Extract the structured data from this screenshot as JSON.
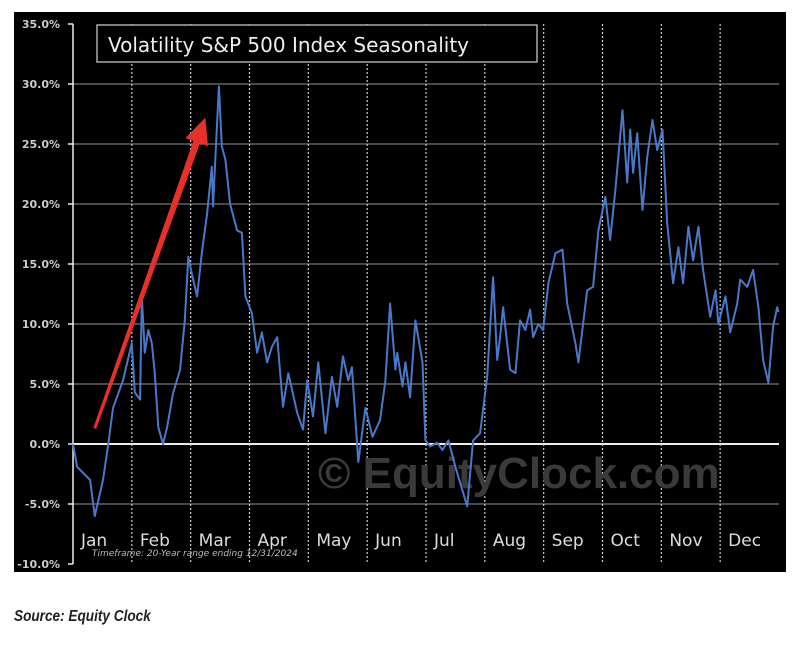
{
  "chart_data": {
    "type": "line",
    "title": "Volatility S&P 500 Index Seasonality",
    "xlabel": "",
    "ylabel": "",
    "x_unit": "months elapsed since Jan 1",
    "xlim": [
      0,
      12
    ],
    "ylim": [
      -10,
      35
    ],
    "yticks": [
      35,
      30,
      25,
      20,
      15,
      10,
      5,
      0,
      -5,
      -10
    ],
    "ytick_labels": [
      "35.0%",
      "30.0%",
      "25.0%",
      "20.0%",
      "15.0%",
      "10.0%",
      "5.0%",
      "0.0%",
      "-5.0%",
      "-10.0%"
    ],
    "categories": [
      "Jan",
      "Feb",
      "Mar",
      "Apr",
      "May",
      "Jun",
      "Jul",
      "Aug",
      "Sep",
      "Oct",
      "Nov",
      "Dec"
    ],
    "grid": true,
    "line_color": "#4a78c8",
    "series": [
      {
        "name": "Volatility S&P 500 Index Seasonality",
        "x": [
          0,
          0.07,
          0.29,
          0.37,
          0.51,
          0.6,
          0.68,
          0.85,
          1.0,
          1.05,
          1.14,
          1.17,
          1.22,
          1.28,
          1.34,
          1.39,
          1.45,
          1.53,
          1.6,
          1.7,
          1.82,
          1.9,
          1.96,
          2.02,
          2.11,
          2.19,
          2.28,
          2.36,
          2.38,
          2.48,
          2.53,
          2.59,
          2.67,
          2.79,
          2.87,
          2.93,
          3.04,
          3.13,
          3.21,
          3.3,
          3.38,
          3.47,
          3.57,
          3.66,
          3.81,
          3.91,
          3.98,
          4.08,
          4.17,
          4.29,
          4.4,
          4.49,
          4.59,
          4.68,
          4.74,
          4.85,
          4.97,
          5.09,
          5.22,
          5.31,
          5.39,
          5.48,
          5.51,
          5.6,
          5.65,
          5.73,
          5.82,
          5.94,
          5.99,
          6.07,
          6.19,
          6.28,
          6.38,
          6.5,
          6.7,
          6.8,
          6.92,
          7.04,
          7.14,
          7.21,
          7.26,
          7.31,
          7.43,
          7.52,
          7.6,
          7.69,
          7.77,
          7.82,
          7.91,
          7.99,
          8.08,
          8.2,
          8.32,
          8.4,
          8.54,
          8.59,
          8.74,
          8.84,
          8.93,
          9.05,
          9.13,
          9.22,
          9.34,
          9.42,
          9.47,
          9.52,
          9.59,
          9.68,
          9.76,
          9.85,
          9.93,
          10.02,
          10.1,
          10.2,
          10.29,
          10.37,
          10.46,
          10.54,
          10.63,
          10.71,
          10.83,
          10.92,
          10.97,
          11.09,
          11.17,
          11.29,
          11.34,
          11.46,
          11.56,
          11.65,
          11.73,
          11.82,
          11.9,
          11.97,
          11.99
        ],
        "y": [
          0,
          -1.9,
          -3,
          -6,
          -3,
          0,
          3,
          5.3,
          8.4,
          4.3,
          3.7,
          12.3,
          7.6,
          9.5,
          8.4,
          5.9,
          1.4,
          0,
          1.4,
          4.2,
          6.2,
          10.3,
          15.6,
          14.2,
          12.3,
          15.9,
          19.2,
          23.1,
          19.8,
          29.8,
          24.8,
          23.7,
          20,
          17.8,
          17.6,
          12.3,
          10.9,
          7.6,
          9.3,
          6.8,
          8.1,
          8.9,
          3.1,
          5.9,
          2.6,
          1.2,
          5.3,
          2.3,
          6.8,
          0.9,
          5.6,
          3.1,
          7.3,
          5.3,
          6.4,
          -1.5,
          3,
          0.6,
          2,
          5.3,
          11.7,
          6.2,
          7.6,
          4.8,
          6.8,
          3.9,
          10.3,
          6.8,
          0.3,
          -0.2,
          0.1,
          -0.5,
          0.3,
          -1.9,
          -5.2,
          0.3,
          0.9,
          5.6,
          13.9,
          7,
          8.9,
          11.4,
          6.2,
          5.9,
          10.3,
          9.5,
          11.2,
          8.9,
          10,
          9.5,
          13.4,
          15.9,
          16.2,
          11.7,
          8.4,
          6.8,
          12.8,
          13.1,
          17.8,
          20.6,
          17,
          21.2,
          27.8,
          21.8,
          26.2,
          22.6,
          25.9,
          19.5,
          23.9,
          27,
          24.5,
          26.2,
          18.4,
          13.4,
          16.4,
          13.4,
          18.1,
          15.3,
          18.1,
          14.5,
          10.6,
          12.8,
          10,
          12.3,
          9.3,
          11.7,
          13.7,
          13.1,
          14.5,
          11.4,
          7,
          5.1,
          9.8,
          11.4,
          11
        ]
      }
    ],
    "annotations": {
      "arrow": {
        "from": [
          0.37,
          1.3
        ],
        "to": [
          2.25,
          27.2
        ],
        "color": "#e8302a"
      },
      "timeframe": "Timeframe: 20-Year range ending 12/31/2024",
      "watermark": "© EquityClock.com"
    }
  },
  "source": "Source: Equity Clock"
}
